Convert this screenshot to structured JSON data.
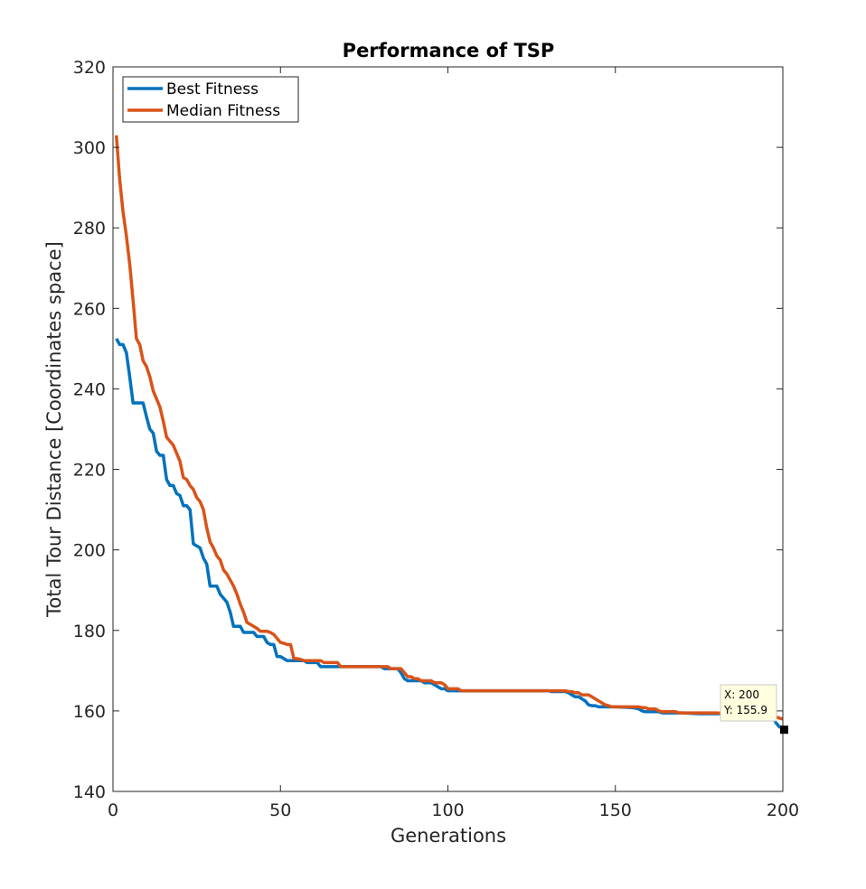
{
  "chart_data": {
    "type": "line",
    "title": "Performance of TSP",
    "xlabel": "Generations",
    "ylabel": "Total Tour Distance [Coordinates space]",
    "xlim": [
      0,
      200
    ],
    "ylim": [
      140,
      320
    ],
    "xticks": [
      "0",
      "50",
      "100",
      "150",
      "200"
    ],
    "yticks": [
      "140",
      "160",
      "180",
      "200",
      "220",
      "240",
      "260",
      "280",
      "300",
      "320"
    ],
    "grid": false,
    "legend_position": "top-left",
    "series": [
      {
        "name": "Best Fitness",
        "color": "#0072BD",
        "points": [
          [
            1,
            252.5
          ],
          [
            2,
            251
          ],
          [
            3,
            251
          ],
          [
            4,
            249
          ],
          [
            5,
            243
          ],
          [
            6,
            236.5
          ],
          [
            7,
            236.5
          ],
          [
            8,
            236.5
          ],
          [
            9,
            236.5
          ],
          [
            10,
            233
          ],
          [
            11,
            230
          ],
          [
            12,
            229
          ],
          [
            13,
            224.5
          ],
          [
            14,
            223.5
          ],
          [
            15,
            223.5
          ],
          [
            16,
            217.5
          ],
          [
            17,
            216
          ],
          [
            18,
            216
          ],
          [
            19,
            214
          ],
          [
            20,
            213.5
          ],
          [
            21,
            211
          ],
          [
            22,
            211
          ],
          [
            23,
            210
          ],
          [
            24,
            201.5
          ],
          [
            25,
            201
          ],
          [
            26,
            200.5
          ],
          [
            27,
            198
          ],
          [
            28,
            196.5
          ],
          [
            29,
            191
          ],
          [
            30,
            191
          ],
          [
            31,
            191
          ],
          [
            32,
            189
          ],
          [
            33,
            188
          ],
          [
            34,
            187
          ],
          [
            35,
            184.5
          ],
          [
            36,
            181
          ],
          [
            37,
            181
          ],
          [
            38,
            181
          ],
          [
            39,
            179.5
          ],
          [
            40,
            179.5
          ],
          [
            41,
            179.5
          ],
          [
            42,
            179.5
          ],
          [
            43,
            178.5
          ],
          [
            44,
            178.5
          ],
          [
            45,
            178.5
          ],
          [
            46,
            177
          ],
          [
            47,
            176.5
          ],
          [
            48,
            176.5
          ],
          [
            49,
            173.5
          ],
          [
            50,
            173.5
          ],
          [
            51,
            173
          ],
          [
            52,
            172.5
          ],
          [
            53,
            172.5
          ],
          [
            54,
            172.5
          ],
          [
            55,
            172.5
          ],
          [
            56,
            172.5
          ],
          [
            57,
            172.5
          ],
          [
            58,
            172
          ],
          [
            59,
            172
          ],
          [
            60,
            172
          ],
          [
            61,
            172
          ],
          [
            62,
            171
          ],
          [
            63,
            171
          ],
          [
            64,
            171
          ],
          [
            65,
            171
          ],
          [
            66,
            171
          ],
          [
            67,
            171
          ],
          [
            68,
            171
          ],
          [
            70,
            171
          ],
          [
            75,
            171
          ],
          [
            80,
            171
          ],
          [
            81,
            170.5
          ],
          [
            82,
            170.5
          ],
          [
            83,
            170.5
          ],
          [
            84,
            170.5
          ],
          [
            85,
            170.5
          ],
          [
            86,
            169.5
          ],
          [
            87,
            168
          ],
          [
            88,
            167.5
          ],
          [
            89,
            167.5
          ],
          [
            90,
            167.5
          ],
          [
            91,
            167.5
          ],
          [
            92,
            167.5
          ],
          [
            93,
            167
          ],
          [
            94,
            167
          ],
          [
            95,
            167
          ],
          [
            96,
            166.5
          ],
          [
            97,
            166
          ],
          [
            98,
            165.5
          ],
          [
            99,
            165.5
          ],
          [
            100,
            165
          ],
          [
            101,
            165
          ],
          [
            105,
            165
          ],
          [
            110,
            165
          ],
          [
            120,
            165
          ],
          [
            125,
            165
          ],
          [
            130,
            165
          ],
          [
            131,
            164.8
          ],
          [
            135,
            164.8
          ],
          [
            136,
            164.5
          ],
          [
            137,
            164
          ],
          [
            138,
            163.5
          ],
          [
            139,
            163.5
          ],
          [
            140,
            163
          ],
          [
            141,
            162.5
          ],
          [
            142,
            161.5
          ],
          [
            143,
            161.3
          ],
          [
            144,
            161.3
          ],
          [
            145,
            161
          ],
          [
            146,
            161
          ],
          [
            147,
            161
          ],
          [
            150,
            161
          ],
          [
            155,
            160.8
          ],
          [
            156,
            160.7
          ],
          [
            157,
            160.5
          ],
          [
            158,
            160
          ],
          [
            159,
            159.8
          ],
          [
            160,
            159.8
          ],
          [
            163,
            159.8
          ],
          [
            164,
            159.5
          ],
          [
            165,
            159.5
          ],
          [
            170,
            159.5
          ],
          [
            175,
            159.3
          ],
          [
            180,
            159.3
          ],
          [
            185,
            159.3
          ],
          [
            190,
            159
          ],
          [
            195,
            159
          ],
          [
            197,
            158.5
          ],
          [
            198,
            157
          ],
          [
            199,
            156
          ],
          [
            200,
            155.9
          ]
        ]
      },
      {
        "name": "Median Fitness",
        "color": "#D95319",
        "points": [
          [
            1,
            303
          ],
          [
            2,
            292
          ],
          [
            3,
            284
          ],
          [
            4,
            278
          ],
          [
            5,
            271
          ],
          [
            6,
            262
          ],
          [
            7,
            252.5
          ],
          [
            8,
            251
          ],
          [
            9,
            247
          ],
          [
            10,
            245.5
          ],
          [
            11,
            243
          ],
          [
            12,
            239.5
          ],
          [
            13,
            237.5
          ],
          [
            14,
            235.5
          ],
          [
            15,
            232
          ],
          [
            16,
            228
          ],
          [
            17,
            227
          ],
          [
            18,
            226
          ],
          [
            19,
            224
          ],
          [
            20,
            222
          ],
          [
            21,
            218
          ],
          [
            22,
            217.5
          ],
          [
            23,
            216
          ],
          [
            24,
            215
          ],
          [
            25,
            213
          ],
          [
            26,
            212
          ],
          [
            27,
            210
          ],
          [
            28,
            205.5
          ],
          [
            29,
            202
          ],
          [
            30,
            200.5
          ],
          [
            31,
            198.5
          ],
          [
            32,
            197.5
          ],
          [
            33,
            195
          ],
          [
            34,
            194
          ],
          [
            35,
            192.5
          ],
          [
            36,
            191
          ],
          [
            37,
            189
          ],
          [
            38,
            186.5
          ],
          [
            39,
            184.5
          ],
          [
            40,
            182
          ],
          [
            41,
            181.5
          ],
          [
            42,
            181
          ],
          [
            43,
            180.5
          ],
          [
            44,
            179.8
          ],
          [
            45,
            179.8
          ],
          [
            46,
            179.8
          ],
          [
            47,
            179.5
          ],
          [
            48,
            179
          ],
          [
            49,
            178
          ],
          [
            50,
            177
          ],
          [
            51,
            176.8
          ],
          [
            52,
            176.5
          ],
          [
            53,
            176.5
          ],
          [
            54,
            173
          ],
          [
            55,
            173
          ],
          [
            56,
            172.8
          ],
          [
            57,
            172.5
          ],
          [
            58,
            172.5
          ],
          [
            59,
            172.5
          ],
          [
            60,
            172.5
          ],
          [
            61,
            172.5
          ],
          [
            62,
            172.5
          ],
          [
            63,
            172
          ],
          [
            64,
            172
          ],
          [
            65,
            172
          ],
          [
            66,
            172
          ],
          [
            67,
            172
          ],
          [
            68,
            171
          ],
          [
            70,
            171
          ],
          [
            75,
            171
          ],
          [
            80,
            171
          ],
          [
            81,
            171
          ],
          [
            82,
            171
          ],
          [
            83,
            170.5
          ],
          [
            84,
            170.5
          ],
          [
            85,
            170.5
          ],
          [
            86,
            170.5
          ],
          [
            87,
            169.5
          ],
          [
            88,
            168.5
          ],
          [
            89,
            168.5
          ],
          [
            90,
            168
          ],
          [
            91,
            168
          ],
          [
            92,
            167.5
          ],
          [
            93,
            167.5
          ],
          [
            94,
            167.5
          ],
          [
            95,
            167.5
          ],
          [
            96,
            167
          ],
          [
            97,
            167
          ],
          [
            98,
            167
          ],
          [
            99,
            166.5
          ],
          [
            100,
            165.5
          ],
          [
            101,
            165.5
          ],
          [
            102,
            165.5
          ],
          [
            103,
            165.5
          ],
          [
            104,
            165
          ],
          [
            110,
            165
          ],
          [
            120,
            165
          ],
          [
            130,
            165
          ],
          [
            135,
            165
          ],
          [
            136,
            164.8
          ],
          [
            137,
            164.8
          ],
          [
            138,
            164.5
          ],
          [
            139,
            164.5
          ],
          [
            140,
            164
          ],
          [
            141,
            164
          ],
          [
            142,
            164
          ],
          [
            143,
            163.5
          ],
          [
            144,
            163
          ],
          [
            145,
            162.5
          ],
          [
            146,
            162
          ],
          [
            147,
            161.5
          ],
          [
            148,
            161.3
          ],
          [
            149,
            161
          ],
          [
            150,
            161
          ],
          [
            155,
            161
          ],
          [
            156,
            161
          ],
          [
            157,
            161
          ],
          [
            158,
            160.8
          ],
          [
            159,
            160.8
          ],
          [
            160,
            160.5
          ],
          [
            161,
            160.5
          ],
          [
            162,
            160.5
          ],
          [
            163,
            160
          ],
          [
            164,
            159.8
          ],
          [
            165,
            159.8
          ],
          [
            166,
            159.8
          ],
          [
            167,
            159.8
          ],
          [
            168,
            159.8
          ],
          [
            169,
            159.5
          ],
          [
            170,
            159.5
          ],
          [
            180,
            159.5
          ],
          [
            185,
            159.3
          ],
          [
            190,
            159
          ],
          [
            195,
            158.8
          ],
          [
            197,
            158.5
          ],
          [
            198,
            158.5
          ],
          [
            199,
            158.2
          ],
          [
            200,
            158
          ]
        ]
      }
    ],
    "datatip": {
      "x": 200,
      "y": 155.9,
      "lines": [
        "X: 200",
        "Y: 155.9"
      ]
    }
  }
}
